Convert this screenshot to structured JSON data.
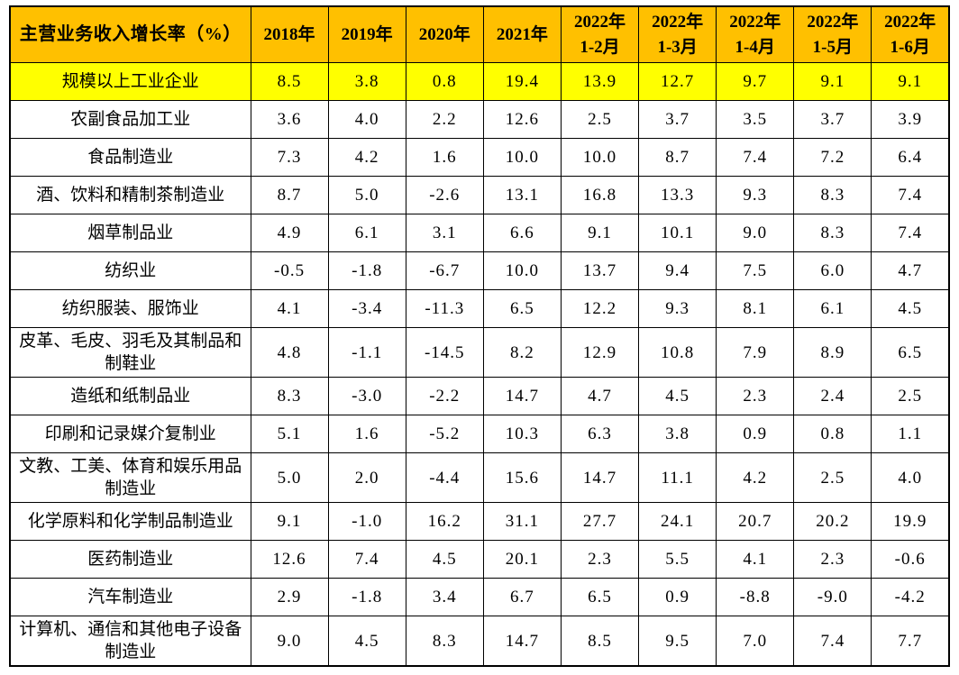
{
  "colors": {
    "header_background": "#FFC000",
    "highlight_row_background": "#FFFF00",
    "border": "#000000",
    "text": "#000000",
    "page_background": "#FFFFFF"
  },
  "header": {
    "corner_label": "主营业务收入增长率（%）",
    "column_lines": [
      [
        "2018年"
      ],
      [
        "2019年"
      ],
      [
        "2020年"
      ],
      [
        "2021年"
      ],
      [
        "2022年",
        "1-2月"
      ],
      [
        "2022年",
        "1-3月"
      ],
      [
        "2022年",
        "1-4月"
      ],
      [
        "2022年",
        "1-5月"
      ],
      [
        "2022年",
        "1-6月"
      ]
    ]
  },
  "chart_data": {
    "type": "table",
    "title": "主营业务收入增长率（%）",
    "columns": [
      "2018年",
      "2019年",
      "2020年",
      "2021年",
      "2022年1-2月",
      "2022年1-3月",
      "2022年1-4月",
      "2022年1-5月",
      "2022年1-6月"
    ],
    "unit": "%",
    "rows": [
      {
        "label": "规模以上工业企业",
        "highlighted": true,
        "values": [
          "8.5",
          "3.8",
          "0.8",
          "19.4",
          "13.9",
          "12.7",
          "9.7",
          "9.1",
          "9.1"
        ]
      },
      {
        "label": "农副食品加工业",
        "highlighted": false,
        "values": [
          "3.6",
          "4.0",
          "2.2",
          "12.6",
          "2.5",
          "3.7",
          "3.5",
          "3.7",
          "3.9"
        ]
      },
      {
        "label": "食品制造业",
        "highlighted": false,
        "values": [
          "7.3",
          "4.2",
          "1.6",
          "10.0",
          "10.0",
          "8.7",
          "7.4",
          "7.2",
          "6.4"
        ]
      },
      {
        "label": "酒、饮料和精制茶制造业",
        "highlighted": false,
        "values": [
          "8.7",
          "5.0",
          "-2.6",
          "13.1",
          "16.8",
          "13.3",
          "9.3",
          "8.3",
          "7.4"
        ]
      },
      {
        "label": "烟草制品业",
        "highlighted": false,
        "values": [
          "4.9",
          "6.1",
          "3.1",
          "6.6",
          "9.1",
          "10.1",
          "9.0",
          "8.3",
          "7.4"
        ]
      },
      {
        "label": "纺织业",
        "highlighted": false,
        "values": [
          "-0.5",
          "-1.8",
          "-6.7",
          "10.0",
          "13.7",
          "9.4",
          "7.5",
          "6.0",
          "4.7"
        ]
      },
      {
        "label": "纺织服装、服饰业",
        "highlighted": false,
        "values": [
          "4.1",
          "-3.4",
          "-11.3",
          "6.5",
          "12.2",
          "9.3",
          "8.1",
          "6.1",
          "4.5"
        ]
      },
      {
        "label": "皮革、毛皮、羽毛及其制品和制鞋业",
        "highlighted": false,
        "values": [
          "4.8",
          "-1.1",
          "-14.5",
          "8.2",
          "12.9",
          "10.8",
          "7.9",
          "8.9",
          "6.5"
        ]
      },
      {
        "label": "造纸和纸制品业",
        "highlighted": false,
        "values": [
          "8.3",
          "-3.0",
          "-2.2",
          "14.7",
          "4.7",
          "4.5",
          "2.3",
          "2.4",
          "2.5"
        ]
      },
      {
        "label": "印刷和记录媒介复制业",
        "highlighted": false,
        "values": [
          "5.1",
          "1.6",
          "-5.2",
          "10.3",
          "6.3",
          "3.8",
          "0.9",
          "0.8",
          "1.1"
        ]
      },
      {
        "label": "文教、工美、体育和娱乐用品制造业",
        "highlighted": false,
        "values": [
          "5.0",
          "2.0",
          "-4.4",
          "15.6",
          "14.7",
          "11.1",
          "4.2",
          "2.5",
          "4.0"
        ]
      },
      {
        "label": "化学原料和化学制品制造业",
        "highlighted": false,
        "values": [
          "9.1",
          "-1.0",
          "16.2",
          "31.1",
          "27.7",
          "24.1",
          "20.7",
          "20.2",
          "19.9"
        ]
      },
      {
        "label": "医药制造业",
        "highlighted": false,
        "values": [
          "12.6",
          "7.4",
          "4.5",
          "20.1",
          "2.3",
          "5.5",
          "4.1",
          "2.3",
          "-0.6"
        ]
      },
      {
        "label": "汽车制造业",
        "highlighted": false,
        "values": [
          "2.9",
          "-1.8",
          "3.4",
          "6.7",
          "6.5",
          "0.9",
          "-8.8",
          "-9.0",
          "-4.2"
        ]
      },
      {
        "label": "计算机、通信和其他电子设备制造业",
        "highlighted": false,
        "values": [
          "9.0",
          "4.5",
          "8.3",
          "14.7",
          "8.5",
          "9.5",
          "7.0",
          "7.4",
          "7.7"
        ]
      }
    ]
  }
}
